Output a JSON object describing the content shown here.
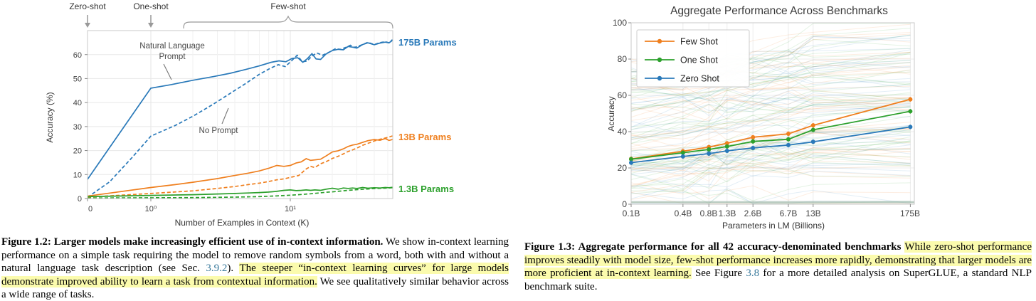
{
  "colors": {
    "blue": "#2979b9",
    "orange": "#ef7f1e",
    "green": "#2ca02c",
    "highlight": "#fbfbad",
    "link": "#36789b",
    "grid": "#e8e8e8",
    "spine": "#c9c9c9"
  },
  "chart_data": [
    {
      "type": "line",
      "id": "in-context-learning",
      "title": "",
      "xlabel": "Number of Examples in Context  (K)",
      "ylabel": "Accuracy (%)",
      "xscale": "symlog",
      "xtick_labels": [
        "0",
        "10⁰",
        "10¹"
      ],
      "yticks": [
        0,
        10,
        20,
        30,
        40,
        50,
        60
      ],
      "ylim": [
        0,
        70
      ],
      "xlim": [
        0,
        54
      ],
      "grid": true,
      "annotations": {
        "zero_shot": "Zero-shot",
        "one_shot": "One-shot",
        "few_shot": "Few-shot",
        "nl_prompt_line1": "Natural Language",
        "nl_prompt_line2": "Prompt",
        "no_prompt": "No Prompt"
      },
      "series_labels": [
        {
          "text": "175B Params",
          "color": "#2979b9"
        },
        {
          "text": "13B Params",
          "color": "#ef7f1e"
        },
        {
          "text": "1.3B Params",
          "color": "#2ca02c"
        }
      ],
      "series": [
        {
          "name": "175B Params — Natural Language Prompt",
          "color": "#2979b9",
          "style": "solid",
          "points": [
            [
              0,
              8
            ],
            [
              1,
              46
            ],
            [
              1.4,
              47.5
            ],
            [
              2,
              49.3
            ],
            [
              2.8,
              50.8
            ],
            [
              3.7,
              52.2
            ],
            [
              4.8,
              53.8
            ],
            [
              6,
              55.3
            ],
            [
              7.3,
              56.8
            ],
            [
              8.3,
              57.4
            ],
            [
              9.3,
              57
            ],
            [
              10.3,
              58.4
            ],
            [
              11.3,
              58.7
            ],
            [
              12.3,
              56.8
            ],
            [
              13.3,
              58.4
            ],
            [
              14.3,
              60.4
            ],
            [
              15.3,
              58.2
            ],
            [
              16.5,
              58
            ],
            [
              18,
              60.2
            ],
            [
              20,
              61.7
            ],
            [
              22,
              62.2
            ],
            [
              24,
              62
            ],
            [
              26,
              63.4
            ],
            [
              28,
              63.1
            ],
            [
              30,
              62.7
            ],
            [
              33,
              64.2
            ],
            [
              36,
              64.9
            ],
            [
              40,
              64.1
            ],
            [
              44,
              64.8
            ],
            [
              48,
              65.2
            ],
            [
              51,
              64.9
            ],
            [
              54,
              65.9
            ]
          ]
        },
        {
          "name": "175B Params — No Prompt",
          "color": "#2979b9",
          "style": "dashed",
          "points": [
            [
              0,
              0.5
            ],
            [
              0.35,
              7
            ],
            [
              0.7,
              17
            ],
            [
              1,
              26
            ],
            [
              1.5,
              30.5
            ],
            [
              2,
              34.3
            ],
            [
              2.8,
              39.3
            ],
            [
              3.7,
              43.8
            ],
            [
              4.8,
              48
            ],
            [
              6,
              51.8
            ],
            [
              7.2,
              54.3
            ],
            [
              8.2,
              55.8
            ],
            [
              9.2,
              55
            ],
            [
              10.2,
              57.4
            ],
            [
              11.2,
              59.7
            ],
            [
              12.2,
              57
            ],
            [
              13.2,
              57.3
            ],
            [
              14.3,
              59.4
            ],
            [
              15.5,
              60.7
            ],
            [
              17,
              59.7
            ],
            [
              19,
              61
            ],
            [
              21,
              62.4
            ],
            [
              23,
              62.2
            ],
            [
              25,
              63
            ],
            [
              27,
              63.9
            ],
            [
              29,
              63
            ],
            [
              32,
              63.9
            ],
            [
              36,
              65.1
            ],
            [
              40,
              64.2
            ],
            [
              44,
              65
            ],
            [
              48,
              65.4
            ],
            [
              51,
              64.9
            ],
            [
              54,
              66.2
            ]
          ]
        },
        {
          "name": "13B Params — Natural Language Prompt",
          "color": "#ef7f1e",
          "style": "solid",
          "points": [
            [
              0,
              1
            ],
            [
              1,
              4.6
            ],
            [
              1.5,
              5.8
            ],
            [
              2,
              6.8
            ],
            [
              3,
              8.3
            ],
            [
              4,
              9.6
            ],
            [
              5,
              10.6
            ],
            [
              6,
              11.5
            ],
            [
              7,
              12.6
            ],
            [
              8,
              13.8
            ],
            [
              9,
              13.4
            ],
            [
              10,
              13.8
            ],
            [
              11,
              14.8
            ],
            [
              12,
              15.3
            ],
            [
              13,
              16.6
            ],
            [
              14,
              15.9
            ],
            [
              15,
              16.1
            ],
            [
              16.5,
              16.4
            ],
            [
              18,
              17.7
            ],
            [
              20,
              19.4
            ],
            [
              22,
              19.9
            ],
            [
              24,
              20.7
            ],
            [
              26,
              21.7
            ],
            [
              28,
              22.3
            ],
            [
              30,
              22.6
            ],
            [
              33,
              23.4
            ],
            [
              36,
              24.1
            ],
            [
              40,
              24.6
            ],
            [
              44,
              24.3
            ],
            [
              48,
              25
            ],
            [
              51,
              24.2
            ],
            [
              54,
              24.6
            ]
          ]
        },
        {
          "name": "13B Params — No Prompt",
          "color": "#ef7f1e",
          "style": "dashed",
          "points": [
            [
              0,
              0.6
            ],
            [
              1,
              2.1
            ],
            [
              2,
              3.2
            ],
            [
              3,
              4.2
            ],
            [
              4,
              5
            ],
            [
              5,
              5.8
            ],
            [
              6,
              6.4
            ],
            [
              7,
              7.1
            ],
            [
              8,
              7.8
            ],
            [
              9,
              8.2
            ],
            [
              10,
              8.8
            ],
            [
              11.5,
              9.6
            ],
            [
              13,
              12.3
            ],
            [
              14,
              13.4
            ],
            [
              15,
              12.9
            ],
            [
              16.5,
              14.5
            ],
            [
              18,
              15.3
            ],
            [
              20,
              16.7
            ],
            [
              22,
              17.6
            ],
            [
              24,
              18.6
            ],
            [
              26,
              19.6
            ],
            [
              28,
              20.3
            ],
            [
              30,
              21
            ],
            [
              33,
              22.2
            ],
            [
              36,
              23
            ],
            [
              40,
              24
            ],
            [
              44,
              24.7
            ],
            [
              48,
              25.2
            ],
            [
              51,
              25.6
            ],
            [
              54,
              26.1
            ]
          ]
        },
        {
          "name": "1.3B Params — Natural Language Prompt",
          "color": "#2ca02c",
          "style": "solid",
          "points": [
            [
              0,
              0.8
            ],
            [
              1,
              1.3
            ],
            [
              2,
              1.6
            ],
            [
              3,
              1.9
            ],
            [
              4,
              2.1
            ],
            [
              5,
              2.3
            ],
            [
              6,
              2.5
            ],
            [
              7,
              2.7
            ],
            [
              8,
              3
            ],
            [
              9,
              3.4
            ],
            [
              10,
              3.6
            ],
            [
              11,
              3.3
            ],
            [
              12,
              3.4
            ],
            [
              13,
              3.6
            ],
            [
              14,
              3.4
            ],
            [
              15,
              3.6
            ],
            [
              16.5,
              3.4
            ],
            [
              18,
              3.9
            ],
            [
              20,
              4.3
            ],
            [
              22,
              3.9
            ],
            [
              24,
              4.4
            ],
            [
              26,
              4.2
            ],
            [
              28,
              4.4
            ],
            [
              30,
              4.2
            ],
            [
              33,
              4.6
            ],
            [
              36,
              4.3
            ],
            [
              40,
              4.5
            ],
            [
              44,
              4.4
            ],
            [
              48,
              4.6
            ],
            [
              51,
              4.5
            ],
            [
              54,
              4.7
            ]
          ]
        },
        {
          "name": "1.3B Params — No Prompt",
          "color": "#2ca02c",
          "style": "dashed",
          "points": [
            [
              0,
              0.2
            ],
            [
              2,
              0.4
            ],
            [
              4,
              0.6
            ],
            [
              6,
              0.8
            ],
            [
              8,
              1.1
            ],
            [
              10,
              1.4
            ],
            [
              12,
              1.7
            ],
            [
              14,
              2
            ],
            [
              16,
              2.3
            ],
            [
              18,
              2.6
            ],
            [
              20,
              2.8
            ],
            [
              23,
              3.1
            ],
            [
              26,
              3.4
            ],
            [
              30,
              3.7
            ],
            [
              34,
              3.9
            ],
            [
              38,
              4.1
            ],
            [
              42,
              4.2
            ],
            [
              46,
              4.3
            ],
            [
              50,
              4.4
            ],
            [
              54,
              4.5
            ]
          ]
        }
      ]
    },
    {
      "type": "line",
      "id": "aggregate-performance",
      "title": "Aggregate Performance Across Benchmarks",
      "xlabel": "Parameters in LM (Billions)",
      "ylabel": "Accuracy",
      "xscale": "log",
      "x_categories": [
        "0.1B",
        "0.4B",
        "0.8B",
        "1.3B",
        "2.6B",
        "6.7B",
        "13B",
        "175B"
      ],
      "x_values": [
        0.1,
        0.4,
        0.8,
        1.3,
        2.6,
        6.7,
        13,
        175
      ],
      "yticks": [
        0,
        20,
        40,
        60,
        80,
        100
      ],
      "ylim": [
        0,
        100
      ],
      "grid": true,
      "legend_position": "upper-left",
      "legend": [
        "Few Shot",
        "One Shot",
        "Zero Shot"
      ],
      "series": [
        {
          "name": "Few Shot",
          "color": "#ef7f1e",
          "values": [
            25.0,
            29.2,
            31.5,
            33.6,
            36.9,
            38.8,
            43.5,
            57.8
          ]
        },
        {
          "name": "One Shot",
          "color": "#2ca02c",
          "values": [
            24.8,
            28.4,
            30.2,
            31.8,
            34.6,
            35.8,
            41.0,
            51.2
          ]
        },
        {
          "name": "Zero Shot",
          "color": "#2979b9",
          "values": [
            22.9,
            26.3,
            27.9,
            29.4,
            31.0,
            32.6,
            34.4,
            42.6
          ]
        }
      ],
      "background": {
        "benchmark_count": 42,
        "settings_per_benchmark": 3,
        "style": "faint individual benchmark curves"
      }
    }
  ],
  "captions": {
    "left": {
      "segments": [
        {
          "style": "bold",
          "text": "Figure 1.2: Larger models make increasingly efficient use of in-context information."
        },
        {
          "style": "normal",
          "text": "  We show in-context learning performance on a simple task requiring the model to remove random symbols from a word, both with and without a natural language task description (see Sec. "
        },
        {
          "style": "link",
          "text": "3.9.2"
        },
        {
          "style": "normal",
          "text": "). "
        },
        {
          "style": "hl",
          "text": "The steeper “in-context learning curves” for large models demonstrate improved ability to learn a task from contextual information."
        },
        {
          "style": "normal",
          "text": " We see qualitatively similar behavior across a wide range of tasks."
        }
      ]
    },
    "right": {
      "segments": [
        {
          "style": "bold",
          "text": "Figure 1.3: Aggregate performance for all 42 accuracy-denominated benchmarks"
        },
        {
          "style": "normal",
          "text": "  "
        },
        {
          "style": "hl",
          "text": "While zero-shot performance improves steadily with model size, few-shot performance increases more rapidly, demonstrating that larger models are more proficient at in-context learning."
        },
        {
          "style": "normal",
          "text": " See Figure "
        },
        {
          "style": "link",
          "text": "3.8"
        },
        {
          "style": "normal",
          "text": " for a more detailed analysis on SuperGLUE, a standard NLP benchmark suite."
        }
      ]
    }
  }
}
